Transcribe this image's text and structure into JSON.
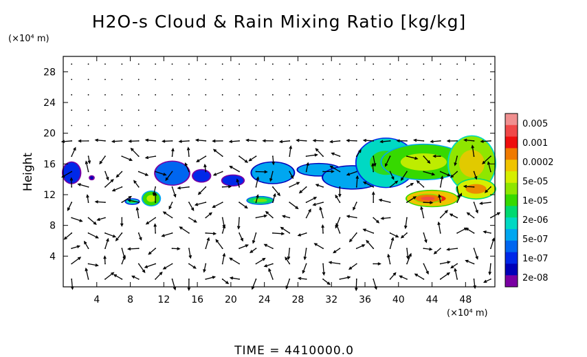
{
  "chart_data": {
    "type": "heatmap",
    "title": "H2O-s Cloud & Rain Mixing Ratio [kg/kg]",
    "ylabel": "Height",
    "x_unit": "(×10⁴ m)",
    "y_unit": "(×10⁴ m)",
    "x_ticks": [
      "4",
      "8",
      "12",
      "16",
      "20",
      "24",
      "28",
      "32",
      "36",
      "40",
      "44",
      "48"
    ],
    "y_ticks": [
      "4",
      "8",
      "12",
      "16",
      "20",
      "24",
      "28"
    ],
    "xlim": [
      0,
      51.5
    ],
    "ylim": [
      0,
      30
    ],
    "colorbar": {
      "labels": [
        "0.005",
        "0.001",
        "0.0002",
        "5e-05",
        "1e-05",
        "2e-06",
        "5e-07",
        "1e-07",
        "2e-08"
      ],
      "colors": [
        "#f08f8f",
        "#f04848",
        "#ee0e0e",
        "#f07a00",
        "#f0c400",
        "#d6ee00",
        "#8fe600",
        "#36d900",
        "#00d970",
        "#00d9c3",
        "#00a7f0",
        "#0066f0",
        "#0028e8",
        "#0000b8",
        "#7a00a3"
      ]
    },
    "regions": [
      {
        "x": [
          0,
          2
        ],
        "y": [
          13.5,
          16.2
        ],
        "level": 12
      },
      {
        "x": [
          3.2,
          3.6
        ],
        "y": [
          14,
          14.4
        ],
        "level": 13
      },
      {
        "x": [
          7.5,
          9
        ],
        "y": [
          10.8,
          11.4
        ],
        "level": 9
      },
      {
        "x": [
          9.5,
          11.5
        ],
        "y": [
          10.6,
          12.4
        ],
        "level": 7
      },
      {
        "x": [
          11,
          15
        ],
        "y": [
          13.3,
          16.3
        ],
        "level": 11
      },
      {
        "x": [
          15.5,
          17.5
        ],
        "y": [
          13.7,
          15.2
        ],
        "level": 12
      },
      {
        "x": [
          19,
          21.5
        ],
        "y": [
          13.2,
          14.5
        ],
        "level": 12
      },
      {
        "x": [
          22.5,
          27.5
        ],
        "y": [
          13.5,
          16.2
        ],
        "level": 10
      },
      {
        "x": [
          22,
          25
        ],
        "y": [
          10.8,
          11.7
        ],
        "level": 8
      },
      {
        "x": [
          28,
          33
        ],
        "y": [
          14.5,
          16
        ],
        "level": 10
      },
      {
        "x": [
          31,
          38
        ],
        "y": [
          12.8,
          15.7
        ],
        "level": 10
      },
      {
        "x": [
          35,
          42
        ],
        "y": [
          13,
          19.3
        ],
        "level": 9
      },
      {
        "x": [
          38,
          48
        ],
        "y": [
          14,
          18.5
        ],
        "level": 7
      },
      {
        "x": [
          46,
          51.5
        ],
        "y": [
          12.5,
          19.6
        ],
        "level": 6
      },
      {
        "x": [
          41,
          47
        ],
        "y": [
          10.5,
          12.5
        ],
        "level": 4
      },
      {
        "x": [
          42,
          45
        ],
        "y": [
          11,
          12
        ],
        "level": 3
      },
      {
        "x": [
          47,
          51.5
        ],
        "y": [
          11.5,
          14
        ],
        "level": 5
      }
    ]
  },
  "time_label": "TIME  =  4410000.0"
}
